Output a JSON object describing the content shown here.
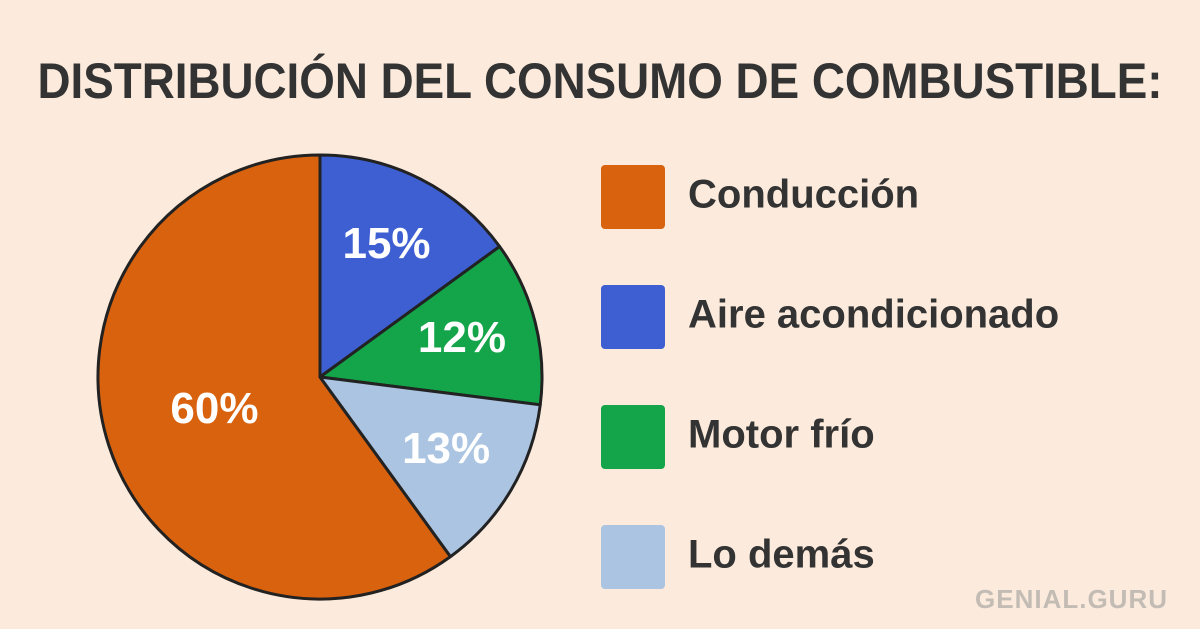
{
  "chart_data": {
    "type": "pie",
    "title": "DISTRIBUCIÓN DEL CONSUMO DE COMBUSTIBLE:",
    "categories": [
      "Conducción",
      "Aire acondicionado",
      "Motor frío",
      "Lo demás"
    ],
    "values": [
      60,
      15,
      12,
      13
    ],
    "value_labels": [
      "60%",
      "15%",
      "12%",
      "13%"
    ],
    "colors": [
      "#d9620f",
      "#3d5fd2",
      "#14a54a",
      "#aac4e2"
    ],
    "legend": "right",
    "watermark": "GENIAL.GURU"
  }
}
